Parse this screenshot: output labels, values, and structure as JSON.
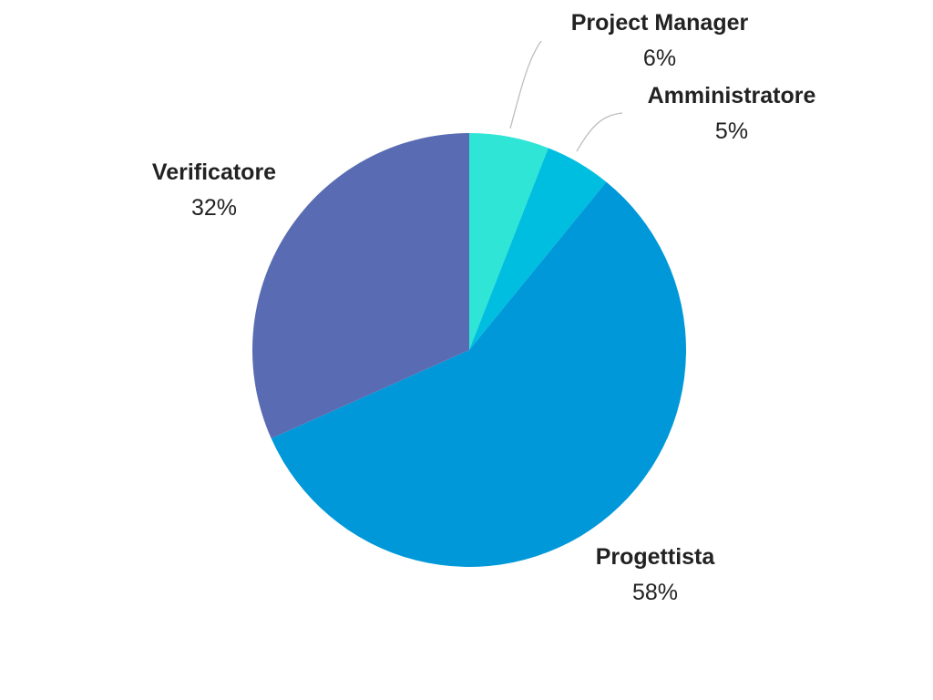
{
  "chart_data": {
    "type": "pie",
    "start_angle_deg": 0,
    "direction": "clockwise",
    "slices": [
      {
        "label": "Project Manager",
        "value": 6,
        "value_label": "6%",
        "color": "#2ee5d6"
      },
      {
        "label": "Amministratore",
        "value": 5,
        "value_label": "5%",
        "color": "#00bedf"
      },
      {
        "label": "Progettista",
        "value": 58,
        "value_label": "58%",
        "color": "#0098d8"
      },
      {
        "label": "Verificatore",
        "value": 32,
        "value_label": "32%",
        "color": "#596cb3"
      }
    ]
  }
}
